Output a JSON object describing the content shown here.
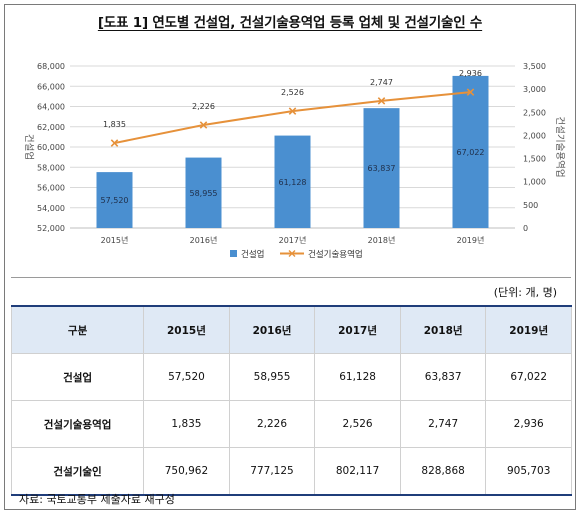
{
  "title": "[도표 1] 연도별 건설업, 건설기술용역업 등록 업체 및 건설기술인 수",
  "unit_note": "(단위: 개, 명)",
  "source": "자료: 국토교통부 제출자료 재구성",
  "colors": {
    "bar": "#4a8fd0",
    "line": "#e6913a",
    "header_bg": "#dfe9f5",
    "header_border": "#1f3d7a"
  },
  "chart_data": {
    "type": "bar+line",
    "categories": [
      "2015년",
      "2016년",
      "2017년",
      "2018년",
      "2019년"
    ],
    "series": [
      {
        "name": "건설업",
        "type": "bar",
        "axis": "left",
        "values": [
          57520,
          58955,
          61128,
          63837,
          67022
        ],
        "labels": [
          "57,520",
          "58,955",
          "61,128",
          "63,837",
          "67,022"
        ]
      },
      {
        "name": "건설기술용역업",
        "type": "line",
        "axis": "right",
        "values": [
          1835,
          2226,
          2526,
          2747,
          2936
        ],
        "labels": [
          "1,835",
          "2,226",
          "2,526",
          "2,747",
          "2,936"
        ]
      }
    ],
    "ylabel_left": "건설업",
    "ylabel_right": "건설기술용역업",
    "ylim_left": [
      52000,
      68000
    ],
    "ylim_right": [
      0,
      3500
    ],
    "yticks_left": [
      "52,000",
      "54,000",
      "56,000",
      "58,000",
      "60,000",
      "62,000",
      "64,000",
      "66,000",
      "68,000"
    ],
    "yticks_right": [
      "0",
      "500",
      "1,000",
      "1,500",
      "2,000",
      "2,500",
      "3,000",
      "3,500"
    ],
    "grid": true,
    "legend_position": "bottom"
  },
  "table": {
    "header": [
      "구분",
      "2015년",
      "2016년",
      "2017년",
      "2018년",
      "2019년"
    ],
    "rows": [
      {
        "label": "건설업",
        "values": [
          "57,520",
          "58,955",
          "61,128",
          "63,837",
          "67,022"
        ]
      },
      {
        "label": "건설기술용역업",
        "values": [
          "1,835",
          "2,226",
          "2,526",
          "2,747",
          "2,936"
        ]
      },
      {
        "label": "건설기술인",
        "values": [
          "750,962",
          "777,125",
          "802,117",
          "828,868",
          "905,703"
        ]
      }
    ]
  }
}
